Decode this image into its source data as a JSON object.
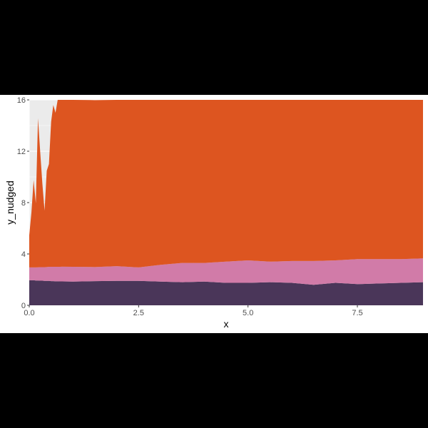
{
  "chart_data": {
    "type": "area",
    "stacked": true,
    "xlabel": "x",
    "ylabel": "y_nudged",
    "xlim": [
      0,
      9
    ],
    "ylim": [
      0,
      16
    ],
    "x_ticks": [
      0.0,
      2.5,
      5.0,
      7.5
    ],
    "x_tick_labels": [
      "0.0",
      "2.5",
      "5.0",
      "7.5"
    ],
    "y_ticks": [
      0,
      4,
      8,
      12,
      16
    ],
    "y_tick_labels": [
      "0",
      "4",
      "8",
      "12",
      "16"
    ],
    "background": "#ebebeb",
    "grid": true,
    "legend": "none",
    "x": [
      0,
      0.05,
      0.1,
      0.15,
      0.2,
      0.25,
      0.3,
      0.35,
      0.4,
      0.45,
      0.5,
      0.55,
      0.6,
      0.65,
      0.7,
      0.75,
      1.0,
      1.5,
      2.0,
      2.5,
      3.0,
      3.5,
      4.0,
      4.5,
      5.0,
      5.5,
      6.0,
      6.5,
      7.0,
      7.5,
      8.0,
      8.5,
      9.0
    ],
    "series": [
      {
        "color": "#4a3659",
        "values": [
          1.95,
          1.95,
          1.95,
          1.93,
          1.93,
          1.92,
          1.92,
          1.9,
          1.9,
          1.9,
          1.88,
          1.88,
          1.87,
          1.87,
          1.86,
          1.86,
          1.85,
          1.88,
          1.9,
          1.9,
          1.85,
          1.8,
          1.85,
          1.75,
          1.75,
          1.8,
          1.75,
          1.6,
          1.75,
          1.65,
          1.7,
          1.75,
          1.8
        ]
      },
      {
        "color": "#d17ba8",
        "values": [
          1.0,
          1.0,
          1.0,
          1.02,
          1.03,
          1.05,
          1.05,
          1.07,
          1.08,
          1.1,
          1.12,
          1.12,
          1.13,
          1.13,
          1.14,
          1.15,
          1.15,
          1.1,
          1.15,
          1.05,
          1.3,
          1.5,
          1.45,
          1.65,
          1.75,
          1.6,
          1.7,
          1.85,
          1.75,
          1.95,
          1.9,
          1.85,
          1.85
        ]
      },
      {
        "color": "#dd5520",
        "values": [
          2.5,
          4.3,
          6.8,
          5.0,
          11.6,
          9.0,
          6.5,
          4.4,
          7.5,
          8.0,
          11.3,
          12.6,
          12.0,
          13.0,
          13.0,
          13.0,
          13.0,
          13.0,
          12.95,
          13.05,
          12.85,
          12.7,
          12.7,
          12.6,
          12.5,
          12.6,
          12.55,
          12.55,
          12.5,
          12.4,
          12.4,
          12.4,
          12.35
        ]
      }
    ]
  }
}
